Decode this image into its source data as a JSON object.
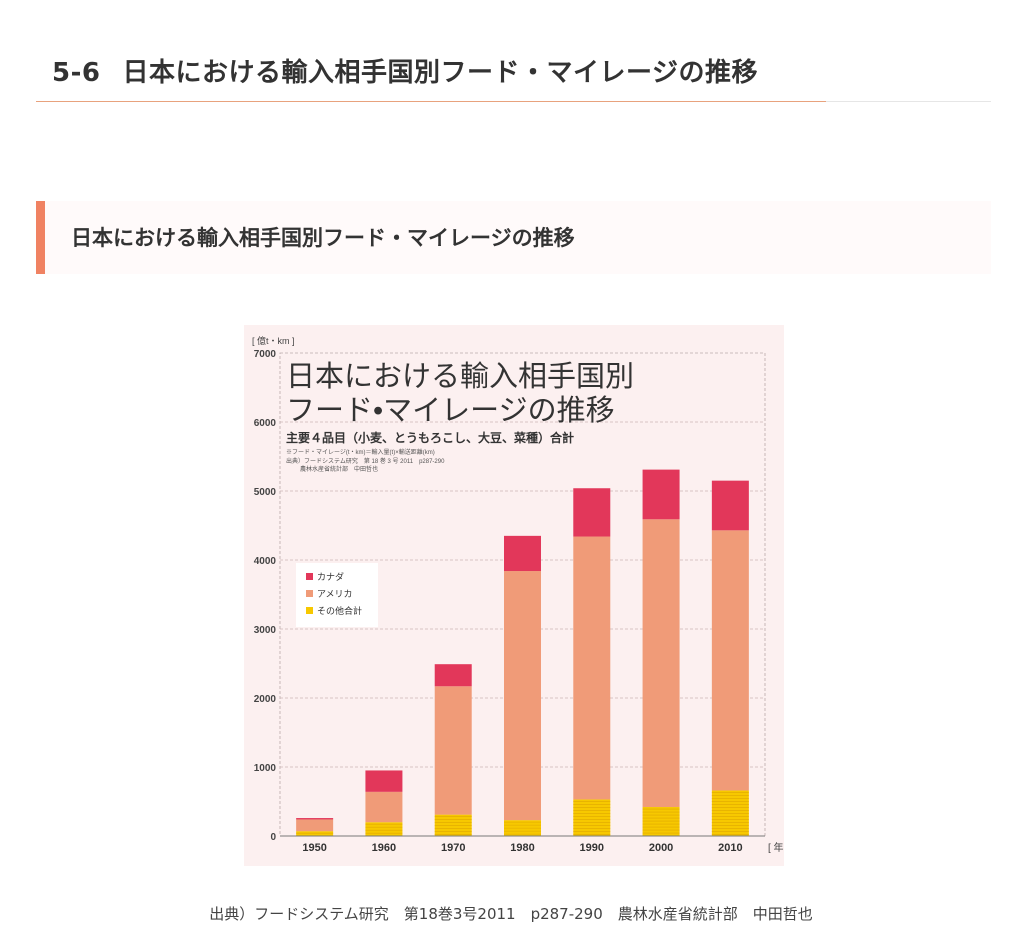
{
  "page": {
    "section_number": "5-6",
    "title": "日本における輸入相手国別フード・マイレージの推移"
  },
  "section": {
    "heading": "日本における輸入相手国別フード・マイレージの推移"
  },
  "caption": "出典）フードシステム研究　第18巻3号2011　p287-290　農林水産省統計部　中田哲也",
  "colors": {
    "canada": "#e2375a",
    "america": "#f09b78",
    "other": "#f7c800",
    "accent": "#f08262"
  },
  "chart_data": {
    "type": "bar",
    "stacked": true,
    "title_lines": [
      "日本における輸入相手国別",
      "フード•マイレージの推移"
    ],
    "subtitle": "主要４品目（小麦、とうもろこし、大豆、菜種）合計",
    "notes": [
      "※フード・マイレージ(t・km)＝輸入量(t)×輸送距離(km)",
      "出典）フードシステム研究　第 18 巻 3 号 2011　p287-290",
      "農林水産省統計部　中田哲也"
    ],
    "ylabel": "[ 億t・km ]",
    "xunit": "[ 年 ]",
    "ylim": [
      0,
      7000
    ],
    "yticks": [
      0,
      1000,
      2000,
      3000,
      4000,
      5000,
      6000,
      7000
    ],
    "categories": [
      "1950",
      "1960",
      "1970",
      "1980",
      "1990",
      "2000",
      "2010"
    ],
    "series": [
      {
        "name": "その他合計",
        "values": [
          70,
          200,
          310,
          230,
          530,
          420,
          660
        ]
      },
      {
        "name": "アメリカ",
        "values": [
          170,
          440,
          1860,
          3610,
          3810,
          4170,
          3770
        ]
      },
      {
        "name": "カナダ",
        "values": [
          20,
          310,
          320,
          510,
          700,
          720,
          720
        ]
      }
    ],
    "legend": [
      "カナダ",
      "アメリカ",
      "その他合計"
    ],
    "legend_position": "middle-left",
    "grid": true
  }
}
